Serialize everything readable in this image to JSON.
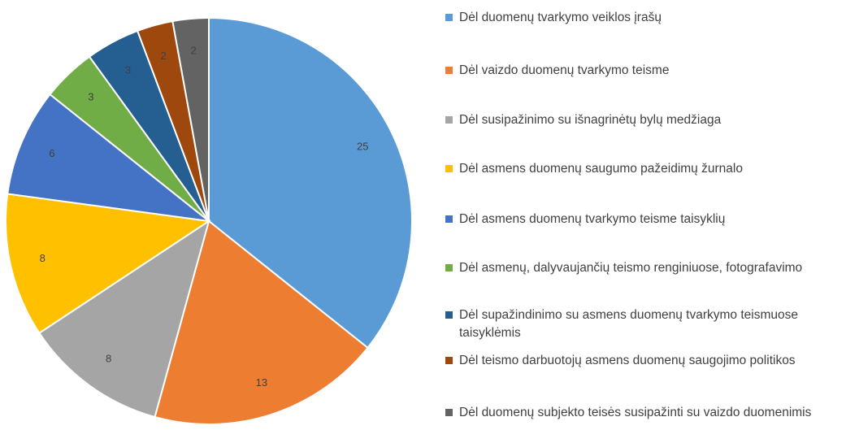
{
  "chart_data": {
    "type": "pie",
    "categories": [
      "Dėl duomenų tvarkymo veiklos įrašų",
      "Dėl vaizdo duomenų tvarkymo teisme",
      "Dėl susipažinimo su išnagrinėtų bylų medžiaga",
      "Dėl asmens duomenų saugumo pažeidimų žurnalo",
      "Dėl asmens duomenų tvarkymo teisme taisyklių",
      "Dėl asmenų, dalyvaujančių teismo renginiuose, fotografavimo",
      "Dėl supažindinimo su asmens duomenų tvarkymo teismuose taisyklėmis",
      "Dėl teismo darbuotojų asmens duomenų saugojimo politikos",
      "Dėl duomenų subjekto teisės susipažinti su vaizdo duomenimis"
    ],
    "values": [
      25,
      13,
      8,
      8,
      6,
      3,
      3,
      2,
      2
    ],
    "colors": [
      "#5b9bd5",
      "#ed7d31",
      "#a5a5a5",
      "#ffc000",
      "#4472c4",
      "#70ad47",
      "#255e91",
      "#9e480e",
      "#636363"
    ],
    "legend": "right"
  }
}
